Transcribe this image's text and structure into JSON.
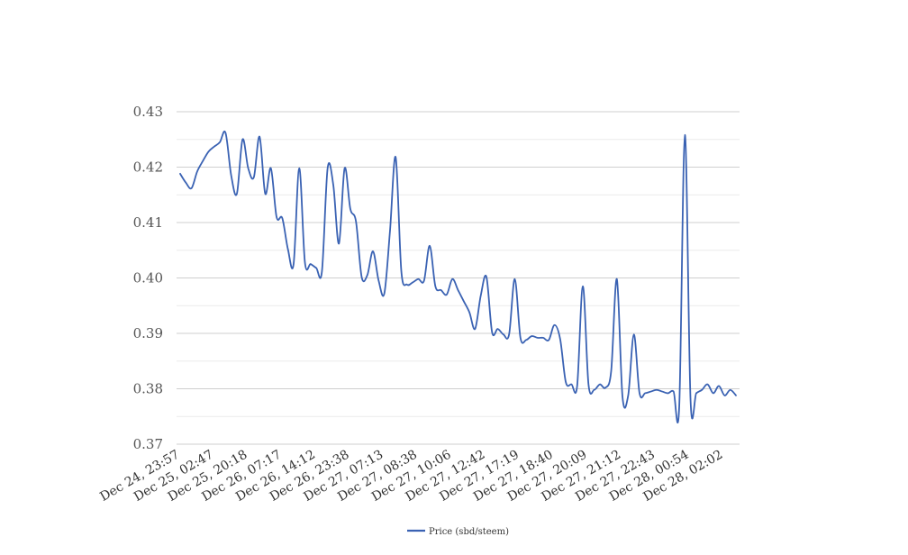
{
  "chart_data": {
    "type": "line",
    "title": "",
    "xlabel": "",
    "ylabel": "",
    "ylim": [
      0.37,
      0.43
    ],
    "y_ticks": [
      "0.37",
      "0.38",
      "0.39",
      "0.40",
      "0.41",
      "0.42",
      "0.43"
    ],
    "y_minor_step": 0.005,
    "grid": true,
    "legend_position": "bottom-center",
    "x_tick_labels": [
      "Dec 24, 23:57",
      "Dec 25, 02:47",
      "Dec 25, 20:18",
      "Dec 26, 07:17",
      "Dec 26, 14:12",
      "Dec 26, 23:38",
      "Dec 27, 07:13",
      "Dec 27, 08:38",
      "Dec 27, 10:06",
      "Dec 27, 12:42",
      "Dec 27, 17:19",
      "Dec 27, 18:40",
      "Dec 27, 20:09",
      "Dec 27, 21:12",
      "Dec 27, 22:43",
      "Dec 28, 00:54",
      "Dec 28, 02:02"
    ],
    "series": [
      {
        "name": "Price (sbd/steem)",
        "color": "#3a62b3",
        "values": [
          0.4188,
          0.4172,
          0.4162,
          0.4192,
          0.4211,
          0.4228,
          0.4237,
          0.4245,
          0.4262,
          0.4185,
          0.4152,
          0.425,
          0.4198,
          0.4182,
          0.4255,
          0.4152,
          0.4198,
          0.411,
          0.4108,
          0.4052,
          0.4025,
          0.4198,
          0.4028,
          0.4025,
          0.4018,
          0.4012,
          0.4198,
          0.4168,
          0.4062,
          0.4198,
          0.4125,
          0.4102,
          0.4002,
          0.4005,
          0.4048,
          0.3995,
          0.3972,
          0.4085,
          0.4218,
          0.4012,
          0.3988,
          0.3992,
          0.3998,
          0.3995,
          0.4058,
          0.3985,
          0.3978,
          0.397,
          0.3998,
          0.3978,
          0.3958,
          0.3938,
          0.3908,
          0.3968,
          0.4002,
          0.3902,
          0.3908,
          0.3898,
          0.3898,
          0.3998,
          0.3892,
          0.3888,
          0.3895,
          0.3892,
          0.3892,
          0.3888,
          0.3915,
          0.389,
          0.3812,
          0.3808,
          0.3805,
          0.3985,
          0.3808,
          0.3798,
          0.3808,
          0.3802,
          0.3832,
          0.3998,
          0.3785,
          0.3788,
          0.3898,
          0.3792,
          0.3792,
          0.3795,
          0.3798,
          0.3795,
          0.3792,
          0.3795,
          0.3768,
          0.4258,
          0.3778,
          0.3792,
          0.3798,
          0.3808,
          0.3792,
          0.3805,
          0.3788,
          0.3798,
          0.3788
        ]
      }
    ]
  }
}
